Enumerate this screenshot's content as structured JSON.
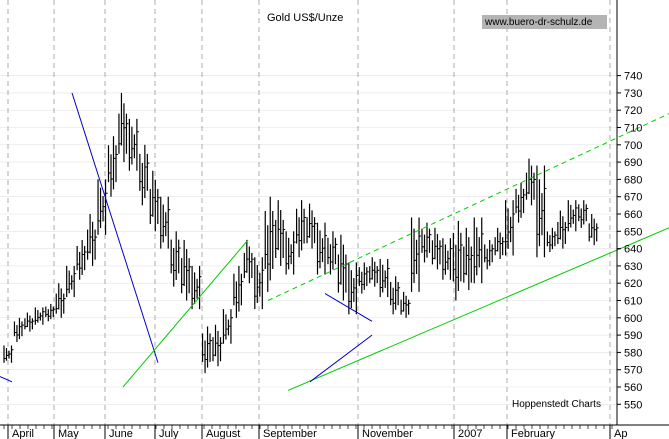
{
  "chart_data": {
    "type": "bar",
    "title": "Gold US$/Unze",
    "source_badge": "www.buero-dr-schulz.de",
    "credit": "Hoppenstedt Charts",
    "ylim": [
      545,
      750
    ],
    "y_ticks": [
      550,
      560,
      570,
      580,
      590,
      600,
      610,
      620,
      630,
      640,
      650,
      660,
      670,
      680,
      690,
      700,
      710,
      720,
      730,
      740
    ],
    "x_ticks": [
      "April",
      "May",
      "June",
      "July",
      "August",
      "September",
      "November",
      "2007",
      "February",
      "Ap"
    ],
    "grid": true,
    "colors": {
      "bars": "#000000",
      "downtrend": "#0000cc",
      "uptrend": "#00cc00",
      "grid": "#9a9a9a",
      "badge": "#b4b4b4"
    },
    "ohlc": [
      [
        584,
        574,
        578
      ],
      [
        600,
        586,
        595
      ],
      [
        603,
        592,
        600
      ],
      [
        606,
        596,
        603
      ],
      [
        608,
        598,
        605
      ],
      [
        620,
        600,
        615
      ],
      [
        630,
        612,
        625
      ],
      [
        645,
        622,
        640
      ],
      [
        660,
        630,
        655
      ],
      [
        680,
        648,
        672
      ],
      [
        705,
        670,
        690
      ],
      [
        730,
        690,
        712
      ],
      [
        715,
        685,
        698
      ],
      [
        700,
        665,
        678
      ],
      [
        685,
        650,
        662
      ],
      [
        670,
        640,
        648
      ],
      [
        650,
        618,
        632
      ],
      [
        645,
        610,
        626
      ],
      [
        630,
        605,
        615
      ],
      [
        595,
        568,
        580
      ],
      [
        596,
        572,
        590
      ],
      [
        605,
        585,
        592
      ],
      [
        630,
        600,
        628
      ],
      [
        645,
        620,
        632
      ],
      [
        635,
        605,
        615
      ],
      [
        670,
        615,
        655
      ],
      [
        668,
        630,
        645
      ],
      [
        650,
        625,
        640
      ],
      [
        668,
        635,
        660
      ],
      [
        666,
        640,
        650
      ],
      [
        655,
        625,
        640
      ],
      [
        650,
        625,
        635
      ],
      [
        648,
        610,
        615
      ],
      [
        632,
        602,
        608
      ],
      [
        632,
        614,
        625
      ],
      [
        635,
        618,
        628
      ],
      [
        634,
        612,
        618
      ],
      [
        624,
        602,
        620
      ],
      [
        615,
        600,
        612
      ],
      [
        658,
        615,
        640
      ],
      [
        655,
        632,
        648
      ],
      [
        652,
        628,
        634
      ],
      [
        646,
        622,
        628
      ],
      [
        656,
        610,
        620
      ],
      [
        652,
        616,
        642
      ],
      [
        658,
        620,
        642
      ],
      [
        645,
        628,
        636
      ],
      [
        652,
        634,
        645
      ],
      [
        668,
        636,
        660
      ],
      [
        678,
        655,
        670
      ],
      [
        692,
        665,
        682
      ],
      [
        688,
        635,
        655
      ],
      [
        652,
        638,
        645
      ],
      [
        662,
        640,
        655
      ],
      [
        668,
        650,
        662
      ],
      [
        668,
        652,
        658
      ],
      [
        660,
        642,
        650
      ]
    ],
    "trendlines": [
      {
        "kind": "downtrend",
        "points": [
          [
            72,
            730
          ],
          [
            158,
            574
          ]
        ]
      },
      {
        "kind": "downtrend",
        "points": [
          [
            0,
            566
          ],
          [
            12,
            563
          ]
        ]
      },
      {
        "kind": "uptrend",
        "points": [
          [
            123,
            560
          ],
          [
            248,
            645
          ]
        ]
      },
      {
        "kind": "uptrend",
        "points": [
          [
            288,
            558
          ],
          [
            669,
            652
          ]
        ]
      },
      {
        "kind": "uptrend-channel",
        "points": [
          [
            268,
            610
          ],
          [
            669,
            718
          ]
        ]
      },
      {
        "kind": "triangle-upper",
        "points": [
          [
            325,
            614
          ],
          [
            372,
            598
          ]
        ]
      },
      {
        "kind": "triangle-lower",
        "points": [
          [
            310,
            563
          ],
          [
            372,
            590
          ]
        ]
      }
    ]
  }
}
